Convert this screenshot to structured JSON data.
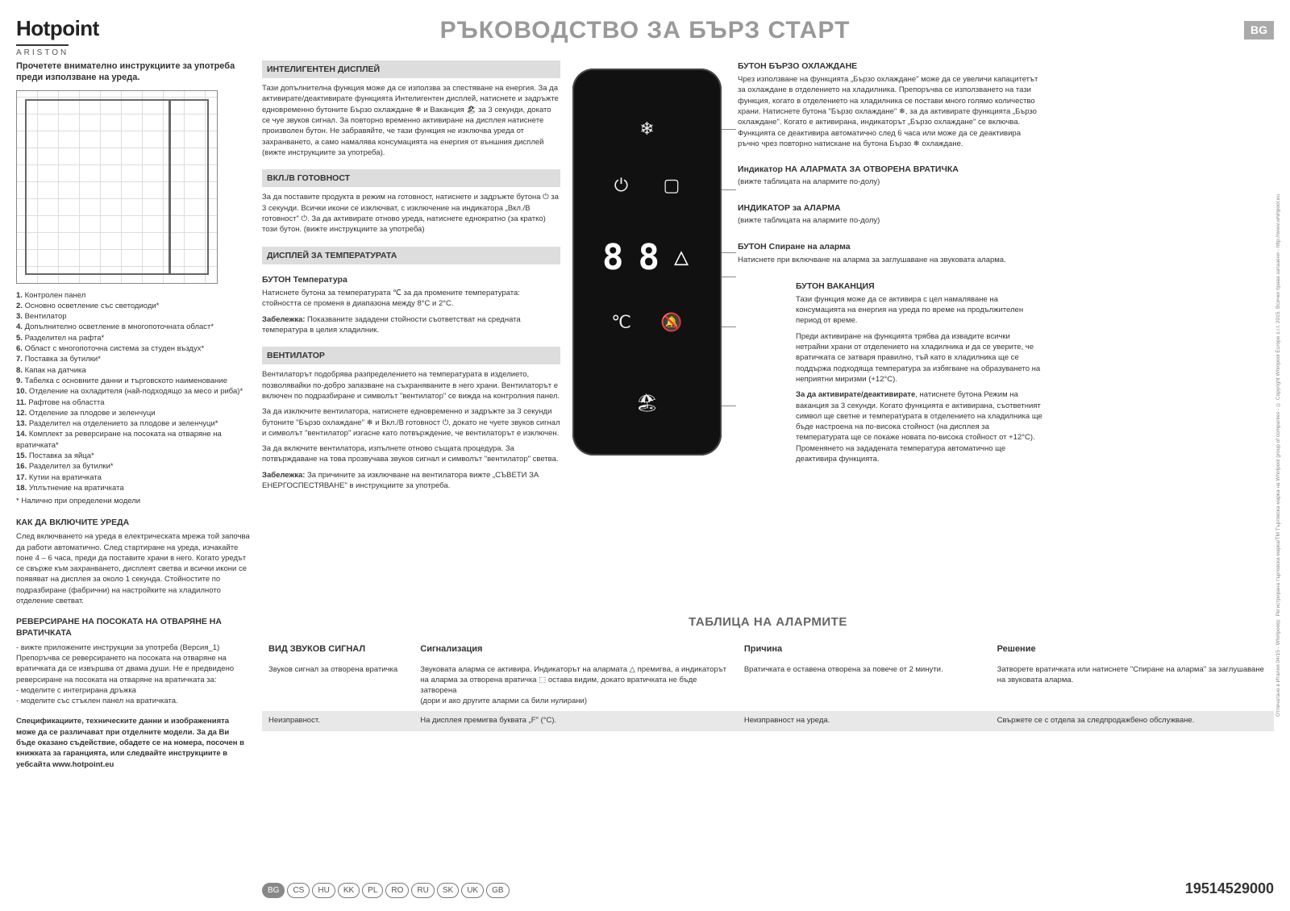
{
  "header": {
    "logo_main": "Hotpoint",
    "logo_sub": "ARISTON",
    "title": "РЪКОВОДСТВО ЗА БЪРЗ СТАРТ",
    "lang_badge": "BG"
  },
  "col1": {
    "intro": "Прочетете внимателно инструкциите за употреба преди използване на уреда.",
    "legend": [
      "1. Контролен панел",
      "2. Основно осветление със светодиоди*",
      "3. Вентилатор",
      "4. Допълнително осветление в многопоточната област*",
      "5. Разделител на рафта*",
      "6. Област с многопоточна система за студен въздух*",
      "7. Поставка за бутилки*",
      "8. Капак на датчика",
      "9. Табелка с основните данни и търговското наименование",
      "10. Отделение на охладителя (най-подходящо за месо и риба)*",
      "11. Рафтове на областта",
      "12. Отделение за плодове и зеленчуци",
      "13. Разделител на отделението за плодове и зеленчуци*",
      "14. Комплект за реверсиране на посоката на отваряне на вратичката*",
      "15. Поставка за яйца*",
      "16. Разделител за бутилки*",
      "17. Кутии на вратичката",
      "18. Уплътнение на вратичката"
    ],
    "legend_note": "* Налично при определени модели",
    "s1_title": "КАК ДА ВКЛЮЧИТЕ УРЕДА",
    "s1_body": "След включването на уреда в електрическата мрежа той започва да работи автоматично. След стартиране на уреда, изчакайте поне 4 – 6 часа, преди да поставите храни в него. Когато уредът се свърже към захранването, дисплеят светва и всички икони се появяват на дисплея за около 1 секунда. Стойностите по подразбиране (фабрични) на настройките на хладилното отделение светват.",
    "s2_title": "РЕВЕРСИРАНЕ НА ПОСОКАТА НА ОТВАРЯНЕ НА ВРАТИЧКАТА",
    "s2_body": "- вижте приложените инструкции за употреба (Версия_1) Препоръчва се реверсирането на посоката на отваряне на вратичката да се извършва от двама души. Не е предвидено реверсиране на посоката на отваряне на вратичката за:\n- моделите с интегрирана дръжка\n- моделите със стъклен панел на вратичката.",
    "spec_note": "Спецификациите, техническите данни и изображенията може да се различават при отделните модели. За да Ви бъде оказано съдействие, обадете се на номера, посочен в книжката за гаранцията, или следвайте инструкциите в уебсайта www.hotpoint.eu"
  },
  "col2": {
    "g1": "ИНТЕЛИГЕНТЕН ДИСПЛЕЙ",
    "g1_body": "Тази допълнителна функция може да се използва за спестяване на енергия. За да активирате/деактивирате функцията Интелигентен дисплей, натиснете и задръжте едновременно бутоните Бързо охлаждане ❄ и Ваканция 🏖 за 3 секунди, докато се чуе звуков сигнал. За повторно временно активиране на дисплея натиснете произволен бутон. Не забравяйте, че тази функция не изключва уреда от захранването, а само намалява консумацията на енергия от външния дисплей (вижте инструкциите за употреба).",
    "g2": "ВКЛ./В ГОТОВНОСТ",
    "g2_body": "За да поставите продукта в режим на готовност, натиснете и задръжте бутона ⏻ за 3 секунди. Всички икони се изключват, с изключение на индикатора „Вкл./В готовност\" ⏻. За да активирате отново уреда, натиснете еднократно (за кратко) този бутон. (вижте инструкциите за употреба)",
    "g3": "ДИСПЛЕЙ ЗА ТЕМПЕРАТУРАТА",
    "g3_sub": "БУТОН Температура",
    "g3_body": "Натиснете бутона за температурата ℃ за да промените температурата: стойността се променя в диапазона между 8°C и 2°C.",
    "g3_note_label": "Забележка:",
    "g3_note": " Показваните зададени стойности съответстват на средната температура в целия хладилник.",
    "g4": "ВЕНТИЛАТОР",
    "g4_body1": "Вентилаторът подобрява разпределението на температурата в изделието, позволявайки по-добро запазване на съхраняваните в него храни. Вентилаторът е включен по подразбиране и символът \"вентилатор\" се вижда на контролния панел.",
    "g4_body2": "За да изключите вентилатора, натиснете едновременно и задръжте за 3 секунди бутоните \"Бързо охлаждане\" ❄ и Вкл./В готовност ⏻, докато не чуете звуков сигнал и символът \"вентилатор\" изгасне като потвърждение, че вентилаторът е изключен.",
    "g4_body3": "За да включите вентилатора, изпълнете отново същата процедура. За потвърждаване на това прозвучава звуков сигнал и символът \"вентилатор\" светва.",
    "g4_note_label": "Забележка:",
    "g4_note": " За причините за изключване на вентилатора вижте „СЪВЕТИ ЗА ЕНЕРГОСПЕСТЯВАНЕ\" в инструкциите за употреба."
  },
  "col3": {
    "s1": "БУТОН БЪРЗО ОХЛАЖДАНЕ",
    "s1_body": "Чрез използване на функцията „Бързо охлаждане\" може да се увеличи капацитетът за охлаждане в отделението на хладилника. Препоръчва се използването на тази функция, когато в отделението на хладилника се постави много голямо количество храни. Натиснете бутона \"Бързо охлаждане\" ❄, за да активирате функцията „Бързо охлаждане\". Когато е активирана, индикаторът „Бързо охлаждане\" се включва. Функцията се деактивира автоматично след 6 часа или може да се деактивира ръчно чрез повторно натискане на бутона Бързо ❄ охлаждане.",
    "s2": "Индикатор НА АЛАРМАТА ЗА ОТВОРЕНА ВРАТИЧКА",
    "s2_body": "(вижте таблицата на алармите по-долу)",
    "s3": "ИНДИКАТОР за АЛАРМА",
    "s3_body": "(вижте таблицата на алармите по-долу)",
    "s4": "БУТОН Спиране на аларма",
    "s4_body": "Натиснете при включване на аларма за заглушаване на звуковата аларма.",
    "s5": "БУТОН ВАКАНЦИЯ",
    "s5_body1": "Тази функция може да се активира с цел намаляване на консумацията на енергия на уреда по време на продължителен период от време.",
    "s5_body2": "Преди активиране на функцията трябва да извадите всички нетрайни храни от отделението на хладилника и да се уверите, че вратичката се затваря правилно, тъй като в хладилника ще се поддържа подходяща температура за избягване на образуването на неприятни миризми (+12°C).",
    "s5_body3_label": "За да активирате/деактивирате",
    "s5_body3": ", натиснете бутона Режим на ваканция за 3 секунди. Когато функцията е активирана, съответният символ ще светне и температурата в отделението на хладилника ще бъде настроена на по-висока стойност (на дисплея за температурата ще се покаже новата по-висока стойност от +12°C). Променянето на зададената температура автоматично ще деактивира функцията."
  },
  "alarm": {
    "title": "ТАБЛИЦА НА АЛАРМИТЕ",
    "headers": [
      "ВИД ЗВУКОВ СИГНАЛ",
      "Сигнализация",
      "Причина",
      "Решение"
    ],
    "rows": [
      {
        "c1": "Звуков сигнал за отворена вратичка",
        "c2": "Звуковата аларма се активира. Индикаторът на алармата △ премигва, а индикаторът на аларма за отворена вратичка ⬚ остава видим, докато вратичката не бъде затворена\n(дори и ако другите аларми са били нулирани)",
        "c3": "Вратичката е оставена отворена за повече от 2 минути.",
        "c4": "Затворете вратичката или натиснете \"Спиране на аларма\" за заглушаване на звуковата аларма."
      },
      {
        "c1": "Неизправност.",
        "c2": "На дисплея премигва буквата „F\" (°C).",
        "c3": "Неизправност на уреда.",
        "c4": "Свържете се с отдела за следпродажбено обслужване."
      }
    ]
  },
  "footer": {
    "langs": [
      "BG",
      "CS",
      "HU",
      "KK",
      "PL",
      "RO",
      "RU",
      "SK",
      "UK",
      "GB"
    ],
    "partno": "19514529000"
  },
  "credits": "Отпечатано в Италия   04/15 - Whirlpool® Регистрирана търговска марка/TM Търговска марка на Whirlpool group of companies - © Copyright Whirlpool Europe s.r.l. 2015. Всички права запазени - http://www.whirlpool.eu"
}
